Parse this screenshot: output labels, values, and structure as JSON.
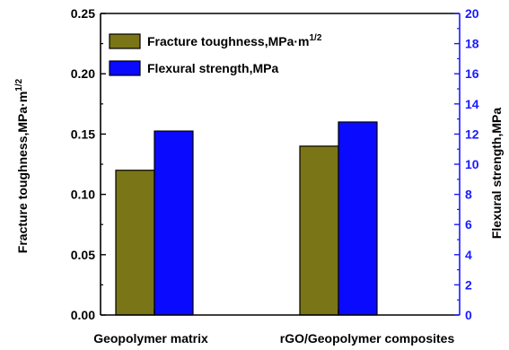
{
  "chart_data": {
    "type": "bar",
    "categories": [
      "Geopolymer matrix",
      "rGO/Geopolymer composites"
    ],
    "series": [
      {
        "name": "Fracture toughness,MPa·m",
        "name_sup": "1/2",
        "axis": "left",
        "color": "#7a7516",
        "values": [
          0.12,
          0.14
        ]
      },
      {
        "name": "Flexural strength,MPa",
        "axis": "right",
        "color": "#0a0aff",
        "values": [
          12.2,
          12.8
        ]
      }
    ],
    "ylabel_left": "Fracture toughness,MPa·m",
    "ylabel_left_sup": "1/2",
    "ylabel_right": "Flexural strength,MPa",
    "ylim_left": [
      0,
      0.25
    ],
    "ylim_right": [
      0,
      20
    ],
    "yticks_left": [
      "0.00",
      "0.05",
      "0.10",
      "0.15",
      "0.20",
      "0.25"
    ],
    "yticks_right": [
      "0",
      "2",
      "4",
      "6",
      "8",
      "10",
      "12",
      "14",
      "16",
      "18",
      "20"
    ],
    "right_axis_color": "#1a1aff",
    "legend_position": "top-left",
    "grid": false
  }
}
